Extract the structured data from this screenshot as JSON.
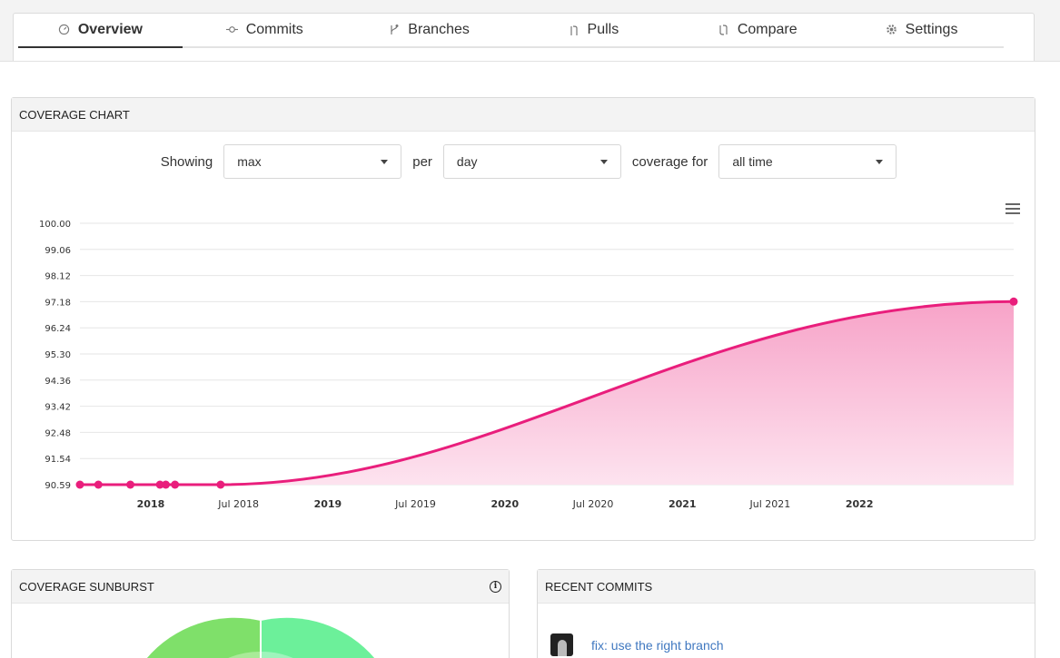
{
  "tabs": [
    {
      "label": "Overview",
      "icon": "gauge-icon"
    },
    {
      "label": "Commits",
      "icon": "commit-icon"
    },
    {
      "label": "Branches",
      "icon": "branch-icon"
    },
    {
      "label": "Pulls",
      "icon": "pull-request-icon"
    },
    {
      "label": "Compare",
      "icon": "compare-icon"
    },
    {
      "label": "Settings",
      "icon": "gear-icon"
    }
  ],
  "coverage_chart": {
    "title": "COVERAGE CHART",
    "showing_label": "Showing",
    "showing_value": "max",
    "per_label": "per",
    "per_value": "day",
    "coverage_for_label": "coverage for",
    "coverage_for_value": "all time"
  },
  "chart_data": {
    "type": "area",
    "title": "",
    "xlabel": "",
    "ylabel": "",
    "color": "#e91e7c",
    "ylim": [
      90.59,
      100.0
    ],
    "yticks": [
      "100.00",
      "99.06",
      "98.12",
      "97.18",
      "96.24",
      "95.30",
      "94.36",
      "93.42",
      "92.48",
      "91.54",
      "90.59"
    ],
    "xticks": [
      {
        "label": "2018",
        "bold": true
      },
      {
        "label": "Jul 2018",
        "bold": false
      },
      {
        "label": "2019",
        "bold": true
      },
      {
        "label": "Jul 2019",
        "bold": false
      },
      {
        "label": "2020",
        "bold": true
      },
      {
        "label": "Jul 2020",
        "bold": false
      },
      {
        "label": "2021",
        "bold": true
      },
      {
        "label": "Jul 2021",
        "bold": false
      },
      {
        "label": "2022",
        "bold": true
      }
    ],
    "x_start": "2017-08-08",
    "x_end": "2022-11-15",
    "points": [
      {
        "x": "2017-08-08",
        "y": 90.59
      },
      {
        "x": "2017-09-15",
        "y": 90.59
      },
      {
        "x": "2017-11-20",
        "y": 90.59
      },
      {
        "x": "2018-01-20",
        "y": 90.59
      },
      {
        "x": "2018-02-01",
        "y": 90.59
      },
      {
        "x": "2018-02-20",
        "y": 90.59
      },
      {
        "x": "2018-05-25",
        "y": 90.59
      },
      {
        "x": "2022-11-15",
        "y": 97.18
      }
    ],
    "grid": true,
    "legend": "none"
  },
  "sunburst": {
    "title": "COVERAGE SUNBURST",
    "info_icon": "info-icon"
  },
  "recent_commits": {
    "title": "RECENT COMMITS",
    "items": [
      {
        "message": "fix: use the right branch"
      }
    ]
  }
}
